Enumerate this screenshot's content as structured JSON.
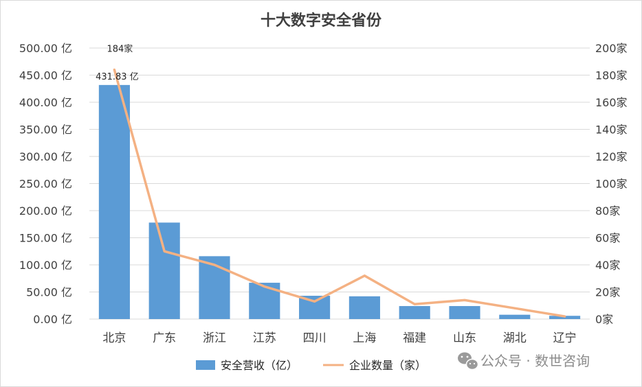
{
  "chart_data": {
    "type": "bar",
    "title": "十大数字安全省份",
    "categories": [
      "北京",
      "广东",
      "浙江",
      "江苏",
      "四川",
      "上海",
      "福建",
      "山东",
      "湖北",
      "辽宁"
    ],
    "series": [
      {
        "name": "安全营收（亿）",
        "type": "bar",
        "axis": "left",
        "values": [
          431.83,
          178,
          116,
          67,
          43,
          42,
          24,
          24,
          8,
          6
        ],
        "color": "#5b9bd5"
      },
      {
        "name": "企业数量（家）",
        "type": "line",
        "axis": "right",
        "values": [
          184,
          50,
          40,
          24,
          13,
          32,
          11,
          14,
          8,
          2
        ],
        "color": "#f4b183"
      }
    ],
    "left_axis": {
      "min": 0,
      "max": 500,
      "step": 50,
      "tick_labels": [
        "0.00 亿",
        "50.00 亿",
        "100.00 亿",
        "150.00 亿",
        "200.00 亿",
        "250.00 亿",
        "300.00 亿",
        "350.00 亿",
        "400.00 亿",
        "450.00 亿",
        "500.00 亿"
      ]
    },
    "right_axis": {
      "min": 0,
      "max": 200,
      "step": 20,
      "tick_labels": [
        "0家",
        "20家",
        "40家",
        "60家",
        "80家",
        "100家",
        "120家",
        "140家",
        "160家",
        "180家",
        "200家"
      ]
    },
    "data_labels": [
      {
        "series": "企业数量（家）",
        "category": "北京",
        "text": "184家"
      },
      {
        "series": "安全营收（亿）",
        "category": "北京",
        "text": "431.83 亿"
      }
    ],
    "grid": true,
    "legend_position": "bottom"
  },
  "watermark": "公众号 · 数世咨询",
  "watermark_icon": "wechat-icon"
}
